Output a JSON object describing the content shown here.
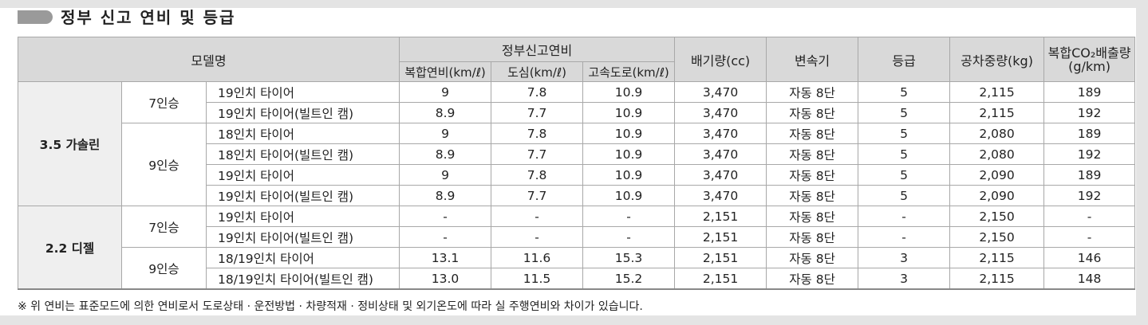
{
  "header": {
    "title": "정부 신고 연비 및 등급"
  },
  "table": {
    "head": {
      "model": "모델명",
      "fuel_economy": "정부신고연비",
      "sub": [
        "복합연비(km/ℓ)",
        "도심(km/ℓ)",
        "고속도로(km/ℓ)"
      ],
      "others": [
        "배기량(cc)",
        "변속기",
        "등급",
        "공차중량(kg)"
      ],
      "co2": [
        "복합CO₂배출량",
        "(g/km)"
      ]
    },
    "groups": [
      {
        "fuel": "3.5 가솔린",
        "seats": [
          {
            "label": "7인승",
            "rows": [
              [
                "19인치 타이어",
                "9",
                "7.8",
                "10.9",
                "3,470",
                "자동 8단",
                "5",
                "2,115",
                "189"
              ],
              [
                "19인치 타이어(빌트인 캠)",
                "8.9",
                "7.7",
                "10.9",
                "3,470",
                "자동 8단",
                "5",
                "2,115",
                "192"
              ]
            ]
          },
          {
            "label": "9인승",
            "rows": [
              [
                "18인치 타이어",
                "9",
                "7.8",
                "10.9",
                "3,470",
                "자동 8단",
                "5",
                "2,080",
                "189"
              ],
              [
                "18인치 타이어(빌트인 캠)",
                "8.9",
                "7.7",
                "10.9",
                "3,470",
                "자동 8단",
                "5",
                "2,080",
                "192"
              ],
              [
                "19인치 타이어",
                "9",
                "7.8",
                "10.9",
                "3,470",
                "자동 8단",
                "5",
                "2,090",
                "189"
              ],
              [
                "19인치 타이어(빌트인 캠)",
                "8.9",
                "7.7",
                "10.9",
                "3,470",
                "자동 8단",
                "5",
                "2,090",
                "192"
              ]
            ]
          }
        ]
      },
      {
        "fuel": "2.2 디젤",
        "seats": [
          {
            "label": "7인승",
            "rows": [
              [
                "19인치 타이어",
                "-",
                "-",
                "-",
                "2,151",
                "자동 8단",
                "-",
                "2,150",
                "-"
              ],
              [
                "19인치 타이어(빌트인 캠)",
                "-",
                "-",
                "-",
                "2,151",
                "자동 8단",
                "-",
                "2,150",
                "-"
              ]
            ]
          },
          {
            "label": "9인승",
            "rows": [
              [
                "18/19인치 타이어",
                "13.1",
                "11.6",
                "15.3",
                "2,151",
                "자동 8단",
                "3",
                "2,115",
                "146"
              ],
              [
                "18/19인치 타이어(빌트인 캠)",
                "13.0",
                "11.5",
                "15.2",
                "2,151",
                "자동 8단",
                "3",
                "2,115",
                "148"
              ]
            ]
          }
        ]
      }
    ]
  },
  "footnote": "※ 위 연비는 표준모드에 의한 연비로서 도로상태 · 운전방법 · 차량적재 · 정비상태 및 외기온도에 따라 실 주행연비와 차이가 있습니다."
}
